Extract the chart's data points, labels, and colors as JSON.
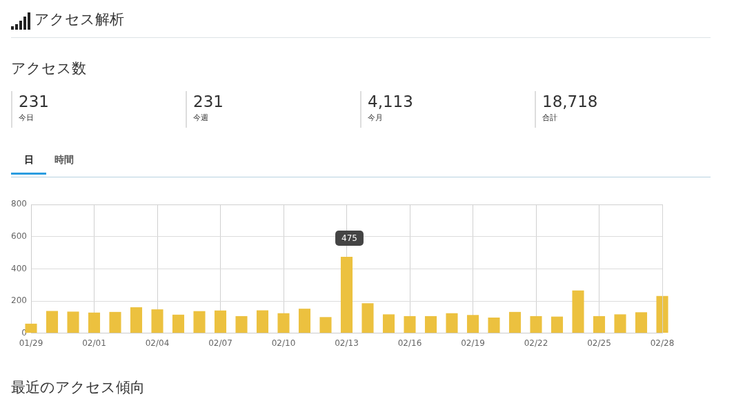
{
  "chart_data": [
    {
      "type": "other",
      "title": "アクセス解析",
      "subtitle": "アクセス数",
      "annotations": [
        "231",
        "今日",
        "231",
        "今週",
        "4,113",
        "今月",
        "18,718",
        "合計"
      ]
    },
    {
      "type": "other",
      "annotations": [
        "日",
        "時間"
      ]
    },
    {
      "type": "bar",
      "color": "#ecc13f",
      "categories": [
        "01/29",
        null,
        null,
        "02/01",
        null,
        null,
        "02/04",
        null,
        null,
        "02/07",
        null,
        null,
        "02/10",
        null,
        null,
        "02/13",
        null,
        null,
        "02/16",
        null,
        null,
        "02/19",
        null,
        null,
        "02/22",
        null,
        null,
        "02/25",
        null,
        null,
        "02/28"
      ],
      "values": [
        59,
        138,
        134,
        128,
        132,
        161,
        148,
        115,
        137,
        141,
        106,
        142,
        124,
        152,
        100,
        475,
        186,
        117,
        106,
        106,
        124,
        113,
        97,
        132,
        106,
        103,
        265,
        106,
        117,
        130,
        231
      ],
      "ylim": [
        0,
        800
      ],
      "yticks": [
        0,
        200,
        400,
        600,
        800
      ],
      "grid": true,
      "annotations": [
        {
          "text": "475",
          "x": "02/13",
          "y": 475
        }
      ]
    },
    {
      "type": "other",
      "title": "最近のアクセス傾向"
    }
  ]
}
